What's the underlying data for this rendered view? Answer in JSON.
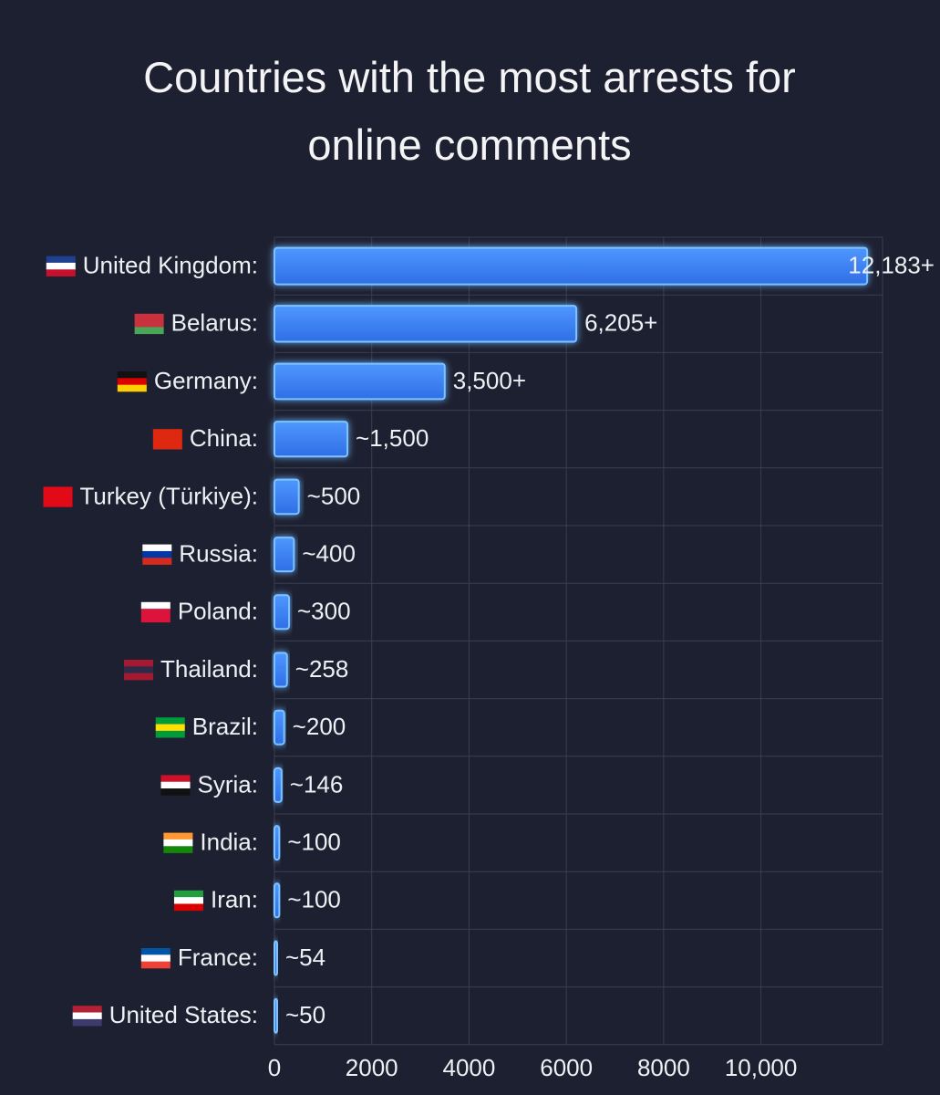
{
  "chart_data": {
    "type": "bar",
    "orientation": "horizontal",
    "title": "Countries with the most arrests for online comments",
    "categories": [
      "United Kingdom:",
      "Belarus:",
      "Germany:",
      "China:",
      "Turkey (Türkiye):",
      "Russia:",
      "Poland:",
      "Thailand:",
      "Brazil:",
      "Syria:",
      "India:",
      "Iran:",
      "France:",
      "United States:"
    ],
    "values": [
      12183,
      6205,
      3500,
      1500,
      500,
      400,
      300,
      258,
      200,
      146,
      100,
      100,
      54,
      50
    ],
    "value_labels": [
      "12,183+",
      "6,205+",
      "3,500+",
      "~1,500",
      "~500",
      "~400",
      "~300",
      "~258",
      "~200",
      "~146",
      "~100",
      "~100",
      "~54",
      "~50"
    ],
    "color": "#3f86f7",
    "xlim": [
      0,
      12500
    ],
    "xticks": [
      0,
      2000,
      4000,
      6000,
      8000,
      {
        "value": 10000,
        "label": "10,000"
      }
    ],
    "grid": true
  }
}
